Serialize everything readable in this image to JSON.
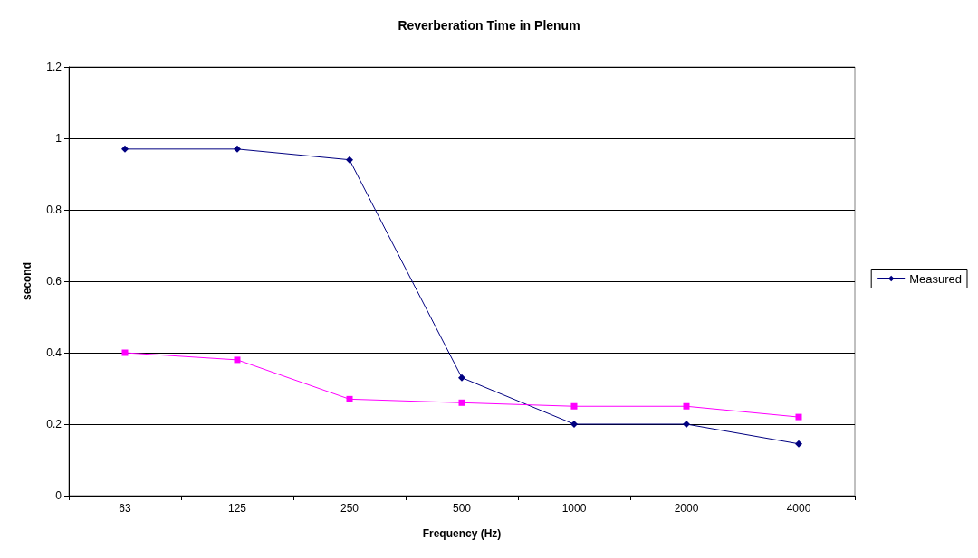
{
  "chart_data": {
    "type": "line",
    "title": "Reverberation Time in Plenum",
    "xlabel": "Frequency (Hz)",
    "ylabel": "second",
    "categories": [
      "63",
      "125",
      "250",
      "500",
      "1000",
      "2000",
      "4000"
    ],
    "series": [
      {
        "name": "Measured",
        "color": "#000080",
        "marker": "diamond",
        "values": [
          0.97,
          0.97,
          0.94,
          0.33,
          0.2,
          0.2,
          0.145
        ]
      },
      {
        "color": "#ff00ff",
        "marker": "square",
        "values": [
          0.4,
          0.38,
          0.27,
          0.26,
          0.25,
          0.25,
          0.22
        ]
      }
    ],
    "ylim": [
      0,
      1.2
    ],
    "yticks": [
      0,
      0.2,
      0.4,
      0.6,
      0.8,
      1,
      1.2
    ],
    "grid": "y",
    "legend": "right"
  }
}
